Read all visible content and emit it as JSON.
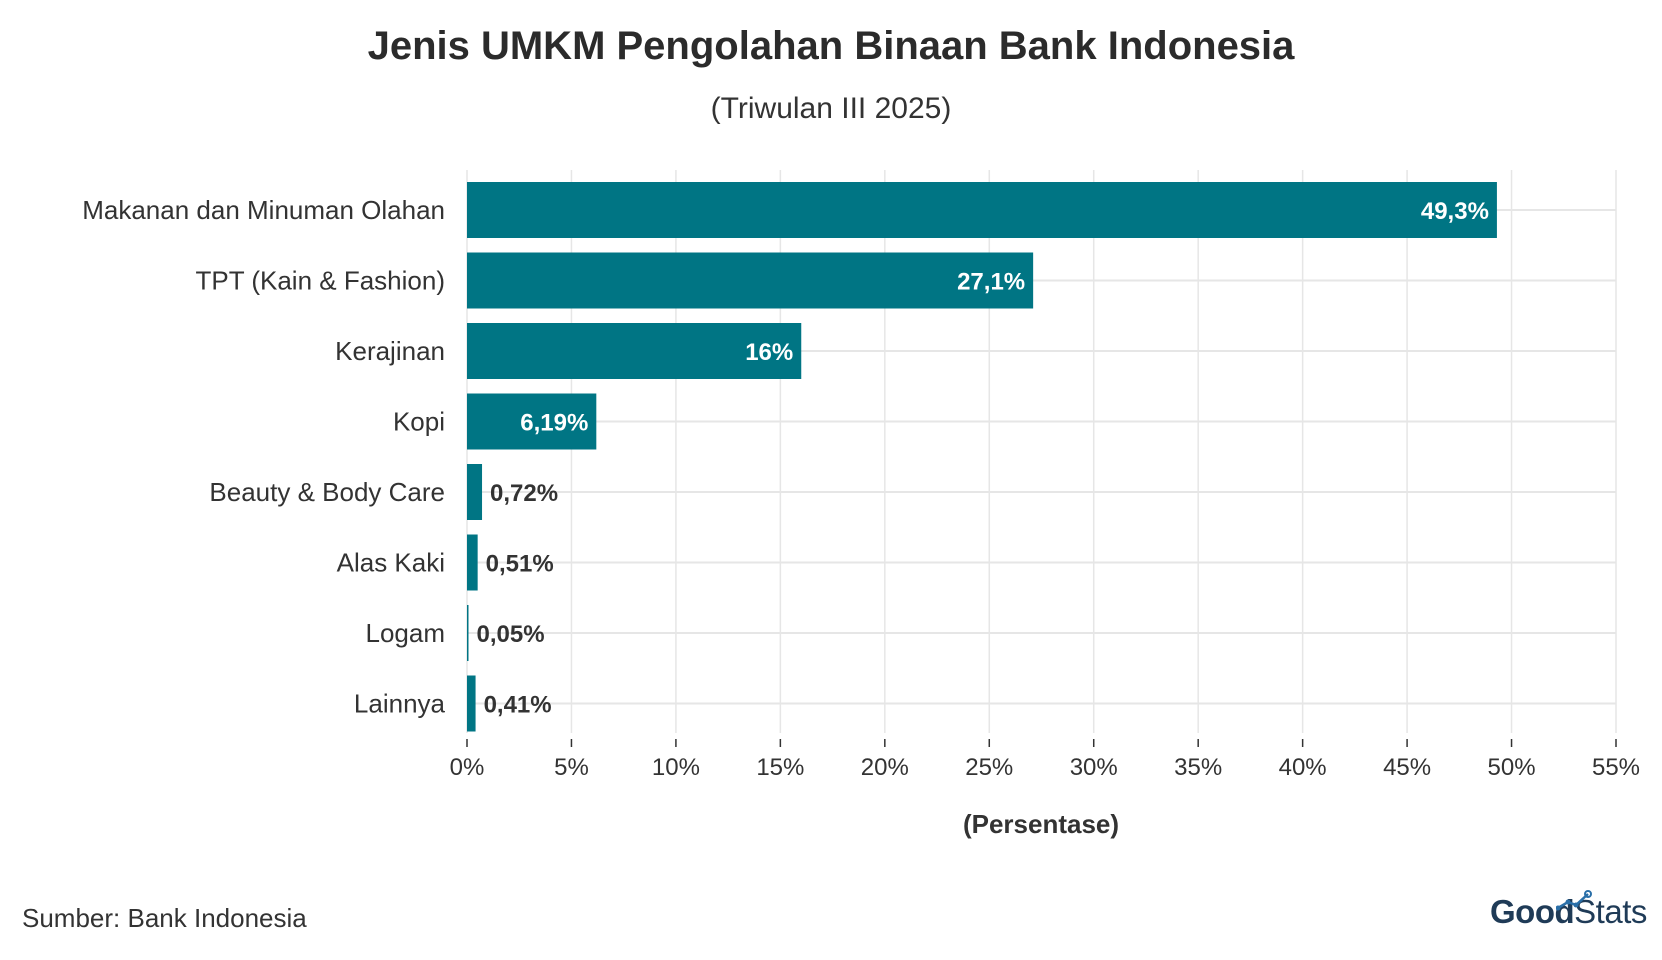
{
  "title": "Jenis UMKM Pengolahan Binaan Bank Indonesia",
  "subtitle": "(Triwulan III 2025)",
  "source": "Sumber: Bank Indonesia",
  "brand": {
    "part1": "Good",
    "part2": "Stats"
  },
  "colors": {
    "bar": "#007584",
    "grid": "#e6e6e6",
    "text": "#333333",
    "label_inside": "#ffffff",
    "label_outside": "#333333"
  },
  "chart_data": {
    "type": "bar",
    "orientation": "horizontal",
    "categories": [
      "Makanan dan Minuman Olahan",
      "TPT (Kain & Fashion)",
      "Kerajinan",
      "Kopi",
      "Beauty & Body Care",
      "Alas Kaki",
      "Logam",
      "Lainnya"
    ],
    "values": [
      49.3,
      27.1,
      16,
      6.19,
      0.72,
      0.51,
      0.05,
      0.41
    ],
    "value_labels": [
      "49,3%",
      "27,1%",
      "16%",
      "6,19%",
      "0,72%",
      "0,51%",
      "0,05%",
      "0,41%"
    ],
    "xlabel": "(Persentase)",
    "ylabel": "",
    "xlim": [
      0,
      55
    ],
    "x_ticks": [
      0,
      5,
      10,
      15,
      20,
      25,
      30,
      35,
      40,
      45,
      50,
      55
    ],
    "x_tick_labels": [
      "0%",
      "5%",
      "10%",
      "15%",
      "20%",
      "25%",
      "30%",
      "35%",
      "40%",
      "45%",
      "50%",
      "55%"
    ],
    "grid": true,
    "legend": "none"
  }
}
